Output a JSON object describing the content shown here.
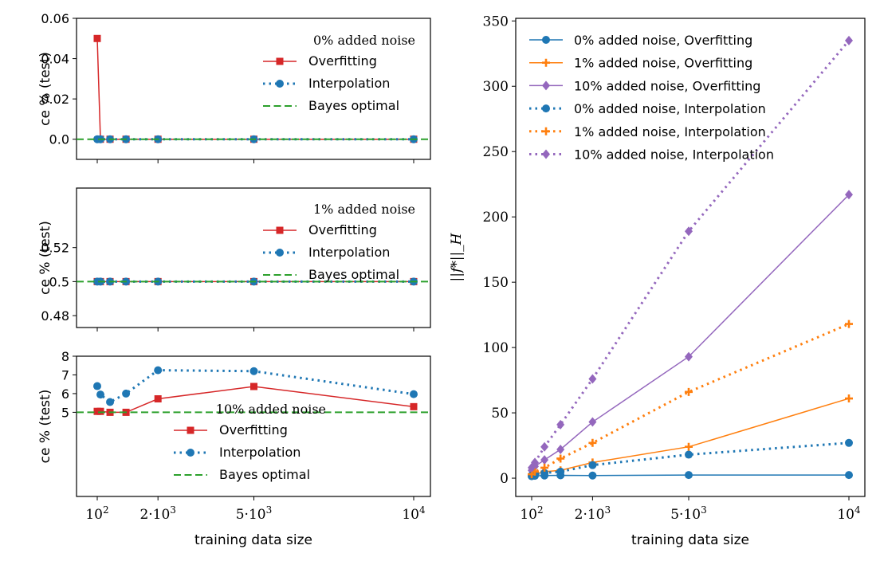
{
  "colors": {
    "overfitting": "#d62728",
    "interpolation": "#1f77b4",
    "bayes": "#2ca02c",
    "noise_0": "#1f77b4",
    "noise_1": "#ff7f0e",
    "noise_10": "#9467bd"
  },
  "chart_data": [
    {
      "type": "line",
      "panel": "top-left",
      "ylabel": "ce % (test)",
      "legend_title": "0% added noise",
      "legend_position": "top-right",
      "ylim": [
        -0.01,
        0.06
      ],
      "yticks": [
        0.0,
        0.02,
        0.04,
        0.06
      ],
      "ytick_labels": [
        "0.0",
        "0.02",
        "0.04",
        "0.06"
      ],
      "x": [
        100,
        200,
        500,
        1000,
        2000,
        5000,
        10000
      ],
      "series": [
        {
          "name": "Overfitting",
          "style": "solid",
          "marker": "square",
          "values": [
            0.05,
            0.0,
            0.0,
            0.0,
            0.0,
            0.0,
            0.0
          ]
        },
        {
          "name": "Interpolation",
          "style": "dotted",
          "marker": "circle",
          "values": [
            0.0,
            0.0,
            0.0,
            0.0,
            0.0,
            0.0,
            0.0
          ]
        },
        {
          "name": "Bayes optimal",
          "style": "dashed",
          "constant": 0.0
        }
      ]
    },
    {
      "type": "line",
      "panel": "middle-left",
      "ylabel": "ce % (test)",
      "legend_title": "1% added noise",
      "legend_position": "top-right",
      "ylim": [
        0.473,
        0.555
      ],
      "yticks": [
        0.48,
        0.5,
        0.52
      ],
      "ytick_labels": [
        "0.48",
        "0.5",
        "0.52"
      ],
      "x": [
        100,
        200,
        500,
        1000,
        2000,
        5000,
        10000
      ],
      "series": [
        {
          "name": "Overfitting",
          "style": "solid",
          "marker": "square",
          "values": [
            0.5,
            0.5,
            0.5,
            0.5,
            0.5,
            0.5,
            0.5
          ]
        },
        {
          "name": "Interpolation",
          "style": "dotted",
          "marker": "circle",
          "values": [
            0.5,
            0.5,
            0.5,
            0.5,
            0.5,
            0.5,
            0.5
          ]
        },
        {
          "name": "Bayes optimal",
          "style": "dashed",
          "constant": 0.5
        }
      ]
    },
    {
      "type": "line",
      "panel": "bottom-left",
      "ylabel": "ce % (test)",
      "xlabel": "training data size",
      "legend_title": "10% added noise",
      "legend_position": "lower-center",
      "ylim": [
        0.5,
        8.0
      ],
      "yticks": [
        5,
        6,
        7,
        8
      ],
      "ytick_labels": [
        "5",
        "6",
        "7",
        "8"
      ],
      "x": [
        100,
        200,
        500,
        1000,
        2000,
        5000,
        10000
      ],
      "series": [
        {
          "name": "Overfitting",
          "style": "solid",
          "marker": "square",
          "values": [
            5.05,
            5.05,
            5.0,
            5.0,
            5.72,
            6.38,
            5.3
          ]
        },
        {
          "name": "Interpolation",
          "style": "dotted",
          "marker": "circle",
          "values": [
            6.4,
            5.95,
            5.55,
            6.0,
            7.25,
            7.2,
            5.97
          ]
        },
        {
          "name": "Bayes optimal",
          "style": "dashed",
          "constant": 5.0
        }
      ]
    },
    {
      "type": "line",
      "panel": "right",
      "ylabel": "||f*||_H",
      "xlabel": "training data size",
      "legend_position": "top-left",
      "ylim": [
        -14,
        352
      ],
      "yticks": [
        0,
        50,
        100,
        150,
        200,
        250,
        300,
        350
      ],
      "ytick_labels": [
        "0",
        "50",
        "100",
        "150",
        "200",
        "250",
        "300",
        "350"
      ],
      "x": [
        100,
        200,
        500,
        1000,
        2000,
        5000,
        10000
      ],
      "series": [
        {
          "name": "0% added noise, Overfitting",
          "style": "solid",
          "marker": "circle",
          "values": [
            1.5,
            1.8,
            2.0,
            2.2,
            2.0,
            2.4,
            2.4
          ]
        },
        {
          "name": "1% added noise, Overfitting",
          "style": "solid",
          "marker": "plus",
          "values": [
            2,
            3,
            5,
            6,
            12,
            24,
            61
          ]
        },
        {
          "name": "10% added noise, Overfitting",
          "style": "solid",
          "marker": "diamond",
          "values": [
            6,
            9,
            14,
            22,
            43,
            93,
            217
          ]
        },
        {
          "name": "0% added noise, Interpolation",
          "style": "dotted",
          "marker": "circle",
          "values": [
            2,
            3,
            4,
            5,
            10,
            18,
            27
          ]
        },
        {
          "name": "1% added noise, Interpolation",
          "style": "dotted",
          "marker": "plus",
          "values": [
            3,
            5,
            8,
            15,
            27,
            66,
            118
          ]
        },
        {
          "name": "10% added noise, Interpolation",
          "style": "dotted",
          "marker": "diamond",
          "values": [
            8,
            12,
            24,
            41,
            76,
            189,
            335
          ]
        }
      ]
    }
  ],
  "x_axis": {
    "xlabel": "training data size",
    "tick_values": [
      100,
      2000,
      5000,
      10000
    ],
    "tick_labels": [
      "10^2",
      "2·10^3",
      "5·10^3",
      "10^4"
    ]
  }
}
